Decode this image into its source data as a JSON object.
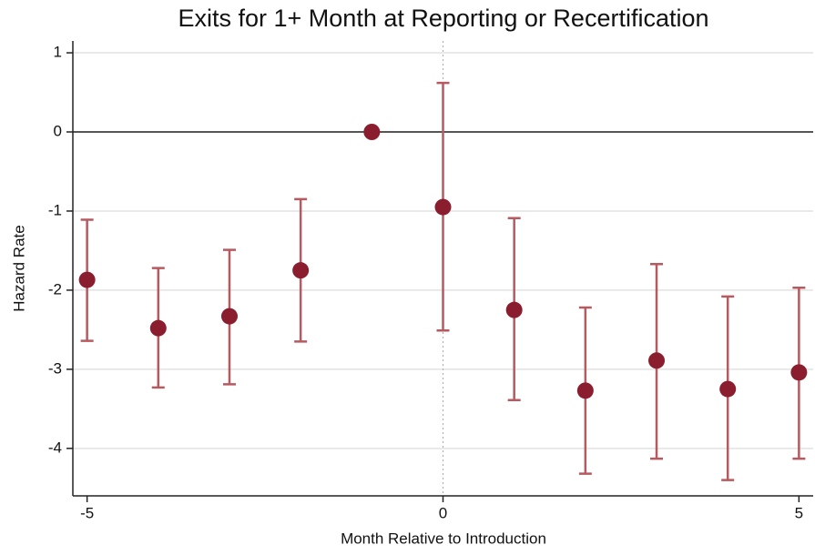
{
  "chart_data": {
    "type": "scatter",
    "title": "Exits for 1+ Month at Reporting or Recertification",
    "x_label": "Month Relative to Introduction",
    "y_label": "Hazard Rate",
    "x": [
      -5,
      -4,
      -3,
      -2,
      -1,
      0,
      1,
      2,
      3,
      4,
      5
    ],
    "series": [
      {
        "color": "#8b1e2e",
        "error_color": "#b65a60",
        "values": [
          -1.87,
          -2.48,
          -2.33,
          -1.75,
          0,
          -0.95,
          -2.25,
          -3.27,
          -2.89,
          -3.25,
          -3.04
        ],
        "lower": [
          -2.64,
          -3.23,
          -3.19,
          -2.65,
          null,
          -2.51,
          -3.39,
          -4.32,
          -4.13,
          -4.4,
          -4.13
        ],
        "upper": [
          -1.11,
          -1.72,
          -1.49,
          -0.85,
          null,
          0.62,
          -1.09,
          -2.22,
          -1.67,
          -2.08,
          -1.97
        ]
      }
    ],
    "xlim": [
      -5.2,
      5.2
    ],
    "ylim": [
      -4.6,
      1.15
    ],
    "xticks": [
      -5,
      0,
      5
    ],
    "yticks": [
      1,
      0,
      -1,
      -2,
      -3,
      -4
    ],
    "grid": true,
    "hline": 0,
    "vline": 0
  }
}
